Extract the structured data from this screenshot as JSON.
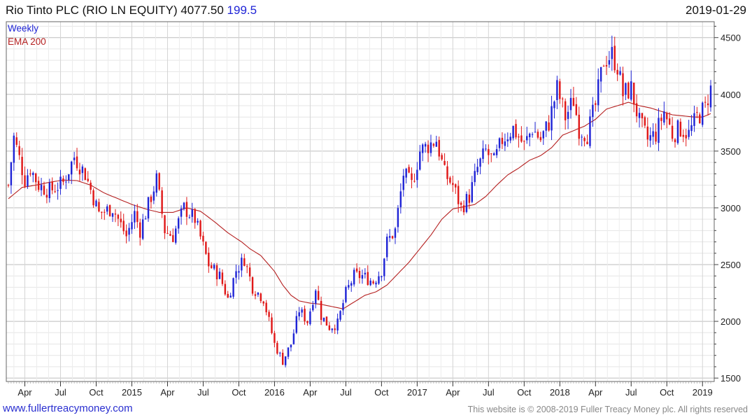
{
  "header": {
    "title": "Rio Tinto PLC (RIO LN EQUITY) 4077.50",
    "change": "199.5",
    "date": "2019-01-29"
  },
  "footer": {
    "site": "www.fullertreacymoney.com",
    "copyright": "This website is © 2008-2019 Fuller Treacy Money plc. All rights reserved"
  },
  "colors": {
    "up": "#1f24d6",
    "down": "#e01818",
    "ema": "#b52020",
    "grid": "#dcdcdc"
  },
  "chart_data": {
    "type": "candlestick",
    "legend": [
      "Weekly",
      "EMA 200"
    ],
    "legend_placement": "top-left",
    "y_axis_side": "right",
    "ylim": [
      1470,
      4640
    ],
    "yticks": [
      1500,
      2000,
      2500,
      3000,
      3500,
      4000,
      4500
    ],
    "xticks": [
      {
        "label": "Apr",
        "week": 6
      },
      {
        "label": "Jul",
        "week": 19
      },
      {
        "label": "Oct",
        "week": 32
      },
      {
        "label": "2015",
        "week": 45
      },
      {
        "label": "Apr",
        "week": 58
      },
      {
        "label": "Jul",
        "week": 71
      },
      {
        "label": "Oct",
        "week": 84
      },
      {
        "label": "2016",
        "week": 97
      },
      {
        "label": "Apr",
        "week": 110
      },
      {
        "label": "Jul",
        "week": 123
      },
      {
        "label": "Oct",
        "week": 136
      },
      {
        "label": "2017",
        "week": 149
      },
      {
        "label": "Apr",
        "week": 162
      },
      {
        "label": "Jul",
        "week": 175
      },
      {
        "label": "Oct",
        "week": 188
      },
      {
        "label": "2018",
        "week": 201
      },
      {
        "label": "Apr",
        "week": 214
      },
      {
        "label": "Jul",
        "week": 227
      },
      {
        "label": "Oct",
        "week": 240
      },
      {
        "label": "2019",
        "week": 253
      }
    ],
    "week_count": 257,
    "close_path": [
      [
        0,
        3200
      ],
      [
        2,
        3620
      ],
      [
        6,
        3250
      ],
      [
        8,
        3350
      ],
      [
        11,
        3200
      ],
      [
        15,
        3150
      ],
      [
        20,
        3220
      ],
      [
        24,
        3450
      ],
      [
        28,
        3300
      ],
      [
        33,
        2950
      ],
      [
        38,
        3000
      ],
      [
        43,
        2750
      ],
      [
        46,
        2950
      ],
      [
        48,
        2800
      ],
      [
        54,
        3250
      ],
      [
        57,
        2800
      ],
      [
        60,
        2750
      ],
      [
        64,
        3000
      ],
      [
        68,
        2900
      ],
      [
        73,
        2500
      ],
      [
        77,
        2400
      ],
      [
        80,
        2200
      ],
      [
        83,
        2450
      ],
      [
        86,
        2550
      ],
      [
        89,
        2300
      ],
      [
        93,
        2200
      ],
      [
        97,
        1800
      ],
      [
        100,
        1650
      ],
      [
        103,
        1800
      ],
      [
        106,
        2100
      ],
      [
        109,
        2000
      ],
      [
        112,
        2300
      ],
      [
        114,
        2050
      ],
      [
        117,
        1950
      ],
      [
        120,
        1980
      ],
      [
        123,
        2250
      ],
      [
        126,
        2400
      ],
      [
        129,
        2400
      ],
      [
        133,
        2350
      ],
      [
        136,
        2450
      ],
      [
        138,
        2700
      ],
      [
        141,
        2800
      ],
      [
        144,
        3300
      ],
      [
        147,
        3200
      ],
      [
        150,
        3500
      ],
      [
        153,
        3550
      ],
      [
        156,
        3600
      ],
      [
        159,
        3300
      ],
      [
        162,
        3200
      ],
      [
        165,
        3000
      ],
      [
        168,
        3100
      ],
      [
        171,
        3350
      ],
      [
        174,
        3500
      ],
      [
        177,
        3400
      ],
      [
        180,
        3600
      ],
      [
        184,
        3700
      ],
      [
        188,
        3550
      ],
      [
        191,
        3700
      ],
      [
        194,
        3600
      ],
      [
        197,
        3750
      ],
      [
        200,
        4050
      ],
      [
        203,
        3800
      ],
      [
        206,
        3950
      ],
      [
        208,
        3700
      ],
      [
        211,
        3650
      ],
      [
        214,
        3900
      ],
      [
        217,
        4300
      ],
      [
        220,
        4350
      ],
      [
        222,
        4250
      ],
      [
        224,
        4000
      ],
      [
        227,
        4050
      ],
      [
        230,
        3750
      ],
      [
        233,
        3600
      ],
      [
        236,
        3650
      ],
      [
        239,
        3850
      ],
      [
        242,
        3650
      ],
      [
        245,
        3700
      ],
      [
        248,
        3650
      ],
      [
        251,
        3800
      ],
      [
        254,
        3880
      ],
      [
        256,
        4077.5
      ]
    ],
    "ema_path": [
      [
        0,
        3080
      ],
      [
        5,
        3180
      ],
      [
        10,
        3200
      ],
      [
        15,
        3225
      ],
      [
        20,
        3245
      ],
      [
        25,
        3240
      ],
      [
        30,
        3200
      ],
      [
        35,
        3130
      ],
      [
        40,
        3080
      ],
      [
        45,
        3030
      ],
      [
        50,
        2990
      ],
      [
        55,
        2960
      ],
      [
        60,
        2960
      ],
      [
        65,
        3000
      ],
      [
        70,
        2970
      ],
      [
        75,
        2880
      ],
      [
        80,
        2780
      ],
      [
        85,
        2700
      ],
      [
        88,
        2640
      ],
      [
        92,
        2580
      ],
      [
        97,
        2440
      ],
      [
        100,
        2320
      ],
      [
        103,
        2230
      ],
      [
        106,
        2180
      ],
      [
        110,
        2160
      ],
      [
        114,
        2150
      ],
      [
        118,
        2130
      ],
      [
        122,
        2110
      ],
      [
        126,
        2170
      ],
      [
        130,
        2230
      ],
      [
        134,
        2260
      ],
      [
        138,
        2320
      ],
      [
        142,
        2420
      ],
      [
        146,
        2520
      ],
      [
        150,
        2640
      ],
      [
        154,
        2760
      ],
      [
        158,
        2900
      ],
      [
        162,
        2990
      ],
      [
        166,
        3010
      ],
      [
        170,
        3030
      ],
      [
        174,
        3100
      ],
      [
        178,
        3200
      ],
      [
        182,
        3290
      ],
      [
        186,
        3350
      ],
      [
        190,
        3420
      ],
      [
        194,
        3460
      ],
      [
        198,
        3530
      ],
      [
        202,
        3640
      ],
      [
        206,
        3680
      ],
      [
        210,
        3720
      ],
      [
        214,
        3780
      ],
      [
        218,
        3870
      ],
      [
        222,
        3900
      ],
      [
        226,
        3930
      ],
      [
        230,
        3900
      ],
      [
        234,
        3880
      ],
      [
        238,
        3850
      ],
      [
        242,
        3820
      ],
      [
        246,
        3810
      ],
      [
        250,
        3800
      ],
      [
        253,
        3800
      ],
      [
        256,
        3830
      ]
    ]
  }
}
